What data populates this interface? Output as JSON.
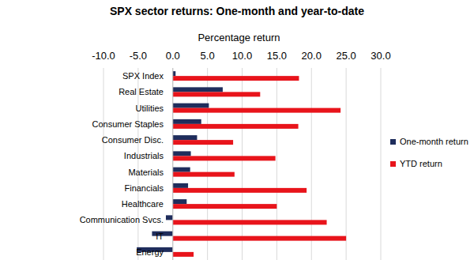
{
  "chart_data": {
    "type": "bar",
    "orientation": "horizontal",
    "title": "SPX sector returns: One-month and year-to-date",
    "x_label": "Percentage return",
    "categories": [
      "SPX Index",
      "Real Estate",
      "Utilities",
      "Consumer Staples",
      "Consumer Disc.",
      "Industrials",
      "Materials",
      "Financials",
      "Healthcare",
      "Communication Svcs.",
      "IT",
      "Energy"
    ],
    "series": [
      {
        "name": "One-month return",
        "color": "#1f2d5c",
        "values": [
          0.4,
          7.2,
          5.2,
          4.1,
          3.5,
          2.6,
          2.5,
          2.2,
          2.0,
          -1.0,
          -3.0,
          -5.2
        ]
      },
      {
        "name": "YTD return",
        "color": "#e8141b",
        "values": [
          18.2,
          12.6,
          24.2,
          18.1,
          8.7,
          14.8,
          8.9,
          19.3,
          15.0,
          22.2,
          25.0,
          3.0
        ]
      }
    ],
    "xlim": [
      -10,
      30
    ],
    "xticks": [
      {
        "value": -10,
        "label": "-10.0"
      },
      {
        "value": -5,
        "label": "-5.0"
      },
      {
        "value": 0,
        "label": "0.0"
      },
      {
        "value": 5,
        "label": "5.0"
      },
      {
        "value": 10,
        "label": "10.0"
      },
      {
        "value": 15,
        "label": "15.0"
      },
      {
        "value": 20,
        "label": "20.0"
      },
      {
        "value": 25,
        "label": "25.0"
      },
      {
        "value": 30,
        "label": "30.0"
      }
    ],
    "grid": true,
    "legend": "right"
  }
}
